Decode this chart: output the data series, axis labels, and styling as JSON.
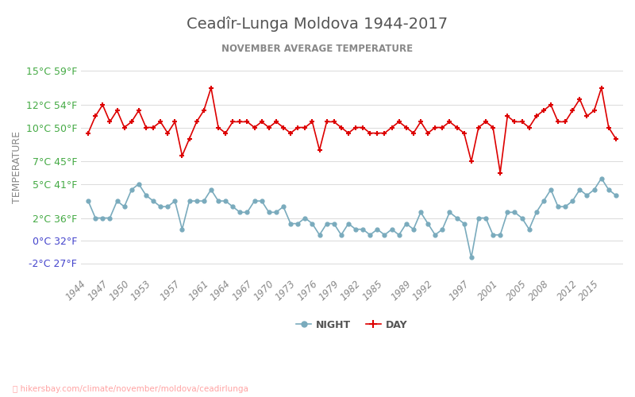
{
  "title": "Ceadîr-Lunga Moldova 1944-2017",
  "subtitle": "NOVEMBER AVERAGE TEMPERATURE",
  "ylabel": "TEMPERATURE",
  "watermark": "hikersbay.com/climate/november/moldova/ceadirlunga",
  "title_color": "#555555",
  "subtitle_color": "#888888",
  "ylabel_color": "#888888",
  "background_color": "#ffffff",
  "grid_color": "#dddddd",
  "day_color": "#dd0000",
  "night_color": "#7aabbd",
  "yticks_celsius": [
    -2,
    0,
    2,
    5,
    7,
    10,
    12,
    15
  ],
  "yticks_fahrenheit": [
    27,
    32,
    36,
    41,
    45,
    50,
    54,
    59
  ],
  "years": [
    1944,
    1945,
    1946,
    1947,
    1948,
    1949,
    1950,
    1951,
    1952,
    1953,
    1954,
    1955,
    1956,
    1957,
    1958,
    1959,
    1960,
    1961,
    1962,
    1963,
    1964,
    1965,
    1966,
    1967,
    1968,
    1969,
    1970,
    1971,
    1972,
    1973,
    1974,
    1975,
    1976,
    1977,
    1978,
    1979,
    1980,
    1981,
    1982,
    1983,
    1984,
    1985,
    1986,
    1987,
    1988,
    1989,
    1990,
    1991,
    1992,
    1993,
    1994,
    1995,
    1996,
    1997,
    1998,
    1999,
    2000,
    2001,
    2002,
    2003,
    2004,
    2005,
    2006,
    2007,
    2008,
    2009,
    2010,
    2011,
    2012,
    2013,
    2014,
    2015,
    2016,
    2017
  ],
  "day_temps": [
    9.5,
    11.0,
    12.0,
    10.5,
    11.5,
    10.0,
    10.5,
    11.5,
    10.0,
    10.0,
    10.5,
    9.5,
    10.5,
    7.5,
    9.0,
    10.5,
    11.5,
    13.5,
    10.0,
    9.5,
    10.5,
    10.5,
    10.5,
    10.0,
    10.5,
    10.0,
    10.5,
    10.0,
    9.5,
    10.0,
    10.0,
    10.5,
    8.0,
    10.5,
    10.5,
    10.0,
    9.5,
    10.0,
    10.0,
    9.5,
    9.5,
    9.5,
    10.0,
    10.5,
    10.0,
    9.5,
    10.5,
    9.5,
    10.0,
    10.0,
    10.5,
    10.0,
    9.5,
    7.0,
    10.0,
    10.5,
    10.0,
    6.0,
    11.0,
    10.5,
    10.5,
    10.0,
    11.0,
    11.5,
    12.0,
    10.5,
    10.5,
    11.5,
    12.5,
    11.0,
    11.5,
    13.5,
    10.0,
    9.0
  ],
  "night_temps": [
    3.5,
    2.0,
    2.0,
    2.0,
    3.5,
    3.0,
    4.5,
    5.0,
    4.0,
    3.5,
    3.0,
    3.0,
    3.5,
    1.0,
    3.5,
    3.5,
    3.5,
    4.5,
    3.5,
    3.5,
    3.0,
    2.5,
    2.5,
    3.5,
    3.5,
    2.5,
    2.5,
    3.0,
    1.5,
    1.5,
    2.0,
    1.5,
    0.5,
    1.5,
    1.5,
    0.5,
    1.5,
    1.0,
    1.0,
    0.5,
    1.0,
    0.5,
    1.0,
    0.5,
    1.5,
    1.0,
    2.5,
    1.5,
    0.5,
    1.0,
    2.5,
    2.0,
    1.5,
    -1.5,
    2.0,
    2.0,
    0.5,
    0.5,
    2.5,
    2.5,
    2.0,
    1.0,
    2.5,
    3.5,
    4.5,
    3.0,
    3.0,
    3.5,
    4.5,
    4.0,
    4.5,
    5.5,
    4.5,
    4.0
  ],
  "xtick_years": [
    1944,
    1947,
    1950,
    1953,
    1957,
    1961,
    1964,
    1967,
    1970,
    1973,
    1976,
    1979,
    1982,
    1985,
    1989,
    1992,
    1997,
    2001,
    2005,
    2008,
    2012,
    2015
  ],
  "ylim": [
    -3,
    16
  ],
  "xlim": [
    1943,
    2018
  ]
}
